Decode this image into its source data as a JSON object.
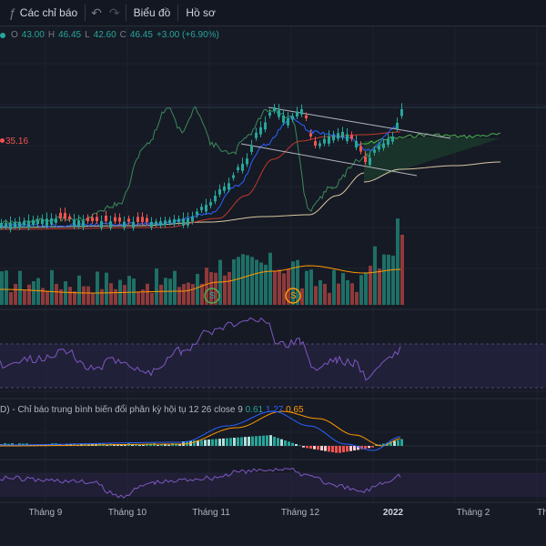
{
  "toolbar": {
    "indicator_icon": "function-icon",
    "indicators_label": "Các chỉ báo",
    "undo_icon": "undo-icon",
    "redo_icon": "redo-icon",
    "chart_label": "Biểu đồ",
    "profile_label": "Hồ sơ"
  },
  "ohlc": {
    "o_label": "O",
    "o": "43.00",
    "h_label": "H",
    "h": "46.45",
    "l_label": "L",
    "l": "42.60",
    "c_label": "C",
    "c": "46.45",
    "change": "+3.00 (+6.90%)"
  },
  "ma_value": "35.16",
  "macd_legend": {
    "prefix": "D) - Chỉ báo trung bình biến đổi phân kỳ hội tụ 12 26 close 9",
    "v1": "0.61",
    "v2": "1.27",
    "v3": "0.65"
  },
  "markers": {
    "first": "S",
    "second": "S"
  },
  "xaxis": {
    "labels": [
      "Tháng 9",
      "Tháng 10",
      "Tháng 11",
      "Tháng 12",
      "2022",
      "Tháng 2",
      "Th"
    ]
  },
  "colors": {
    "up": "#26a69a",
    "down": "#ef5350",
    "bg": "#161a25",
    "rsi": "#7e57c2",
    "macd": "#2962ff",
    "signal": "#ff9800",
    "ma": "#ff9800"
  }
}
